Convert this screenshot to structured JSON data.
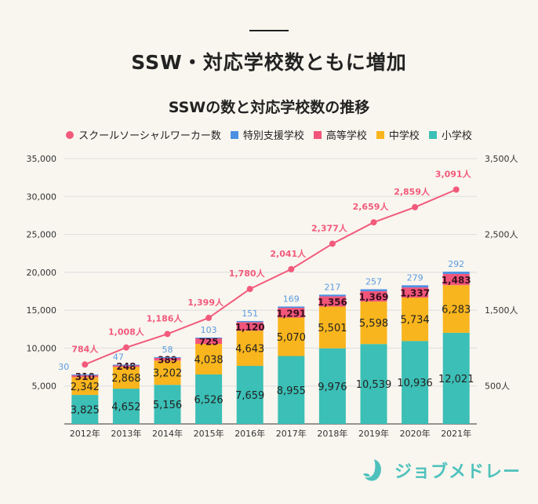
{
  "header": {
    "title": "SSW・対応学校数ともに増加"
  },
  "chart_data": {
    "type": "bar",
    "title": "SSWの数と対応学校数の推移",
    "categories": [
      "2012年",
      "2013年",
      "2014年",
      "2015年",
      "2016年",
      "2017年",
      "2018年",
      "2019年",
      "2020年",
      "2021年"
    ],
    "series": [
      {
        "name": "小学校",
        "color": "#3bbfb6",
        "values": [
          3825,
          4652,
          5156,
          6526,
          7659,
          8955,
          9976,
          10539,
          10936,
          12021
        ],
        "labels": [
          "3,825",
          "4,652",
          "5,156",
          "6,526",
          "7,659",
          "8,955",
          "9,976",
          "10,539",
          "10,936",
          "12,021"
        ]
      },
      {
        "name": "中学校",
        "color": "#f9b51d",
        "values": [
          2342,
          2868,
          3202,
          4038,
          4643,
          5070,
          5501,
          5598,
          5734,
          6283
        ],
        "labels": [
          "2,342",
          "2,868",
          "3,202",
          "4,038",
          "4,643",
          "5,070",
          "5,501",
          "5,598",
          "5,734",
          "6,283"
        ]
      },
      {
        "name": "高等学校",
        "color": "#f2557a",
        "values": [
          310,
          248,
          389,
          725,
          1120,
          1291,
          1356,
          1369,
          1337,
          1483
        ],
        "labels": [
          "310",
          "248",
          "389",
          "725",
          "1,120",
          "1,291",
          "1,356",
          "1,369",
          "1,337",
          "1,483"
        ]
      },
      {
        "name": "特別支援学校",
        "color": "#4a90e2",
        "values": [
          30,
          47,
          58,
          103,
          151,
          169,
          217,
          257,
          279,
          292
        ],
        "labels": [
          "30",
          "47",
          "58",
          "103",
          "151",
          "169",
          "217",
          "257",
          "279",
          "292"
        ]
      }
    ],
    "line": {
      "name": "スクールソーシャルワーカー数",
      "color": "#f25a7c",
      "values": [
        784,
        1008,
        1186,
        1399,
        1780,
        2041,
        2377,
        2659,
        2859,
        3091
      ],
      "labels": [
        "784人",
        "1,008人",
        "1,186人",
        "1,399人",
        "1,780人",
        "2,041人",
        "2,377人",
        "2,659人",
        "2,859人",
        "3,091人"
      ]
    },
    "left_axis": {
      "range": [
        0,
        35000
      ],
      "ticks": [
        "5,000",
        "10,000",
        "15,000",
        "20,000",
        "25,000",
        "30,000",
        "35,000"
      ]
    },
    "right_axis": {
      "range": [
        0,
        3500
      ],
      "ticks": [
        "500人",
        "1,500人",
        "2,500人",
        "3,500人"
      ]
    },
    "grid": true,
    "legend_position": "top"
  },
  "legend": [
    "スクールソーシャルワーカー数",
    "特別支援学校",
    "高等学校",
    "中学校",
    "小学校"
  ],
  "logo": {
    "text": "ジョブメドレー",
    "color": "#4fc1bc"
  }
}
